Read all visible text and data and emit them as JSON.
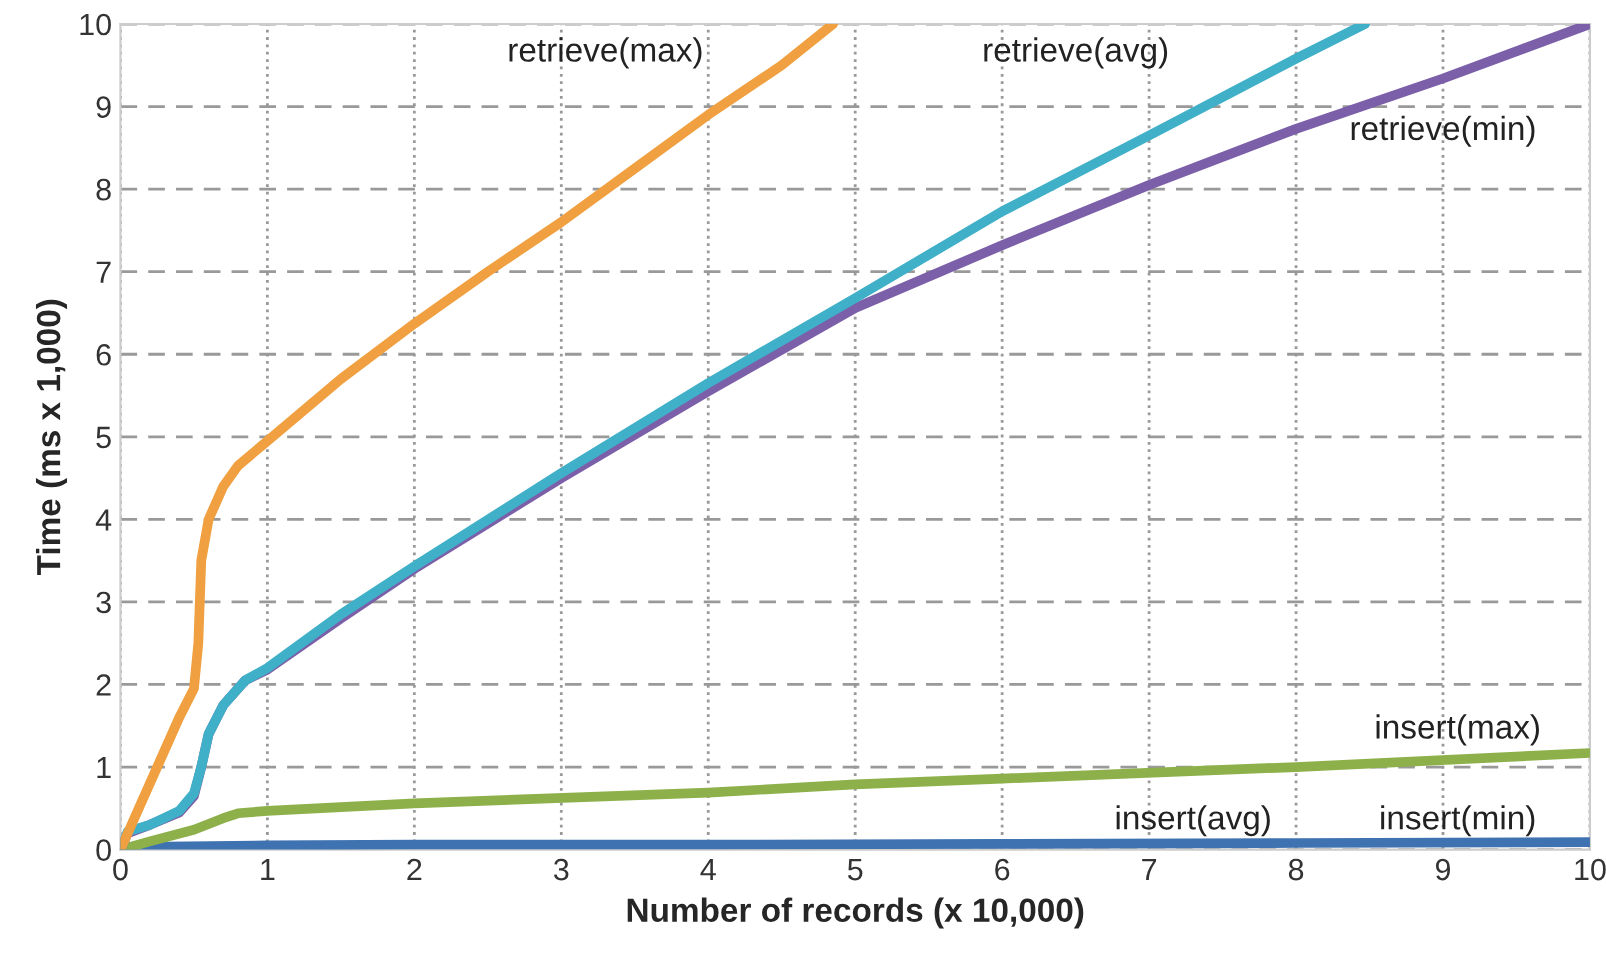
{
  "chart_data": {
    "type": "line",
    "xlabel": "Number of records (x 10,000)",
    "ylabel": "Time (ms x 1,000)",
    "xlim": [
      0,
      10
    ],
    "ylim": [
      0,
      10
    ],
    "xticks": [
      0,
      1,
      2,
      3,
      4,
      5,
      6,
      7,
      8,
      9,
      10
    ],
    "yticks": [
      0,
      1,
      2,
      3,
      4,
      5,
      6,
      7,
      8,
      9,
      10
    ],
    "grid": true,
    "legend": false,
    "series": [
      {
        "color": "#3f72b0",
        "x": [
          0,
          1,
          2,
          4,
          6,
          8,
          10
        ],
        "values": [
          0.03,
          0.05,
          0.06,
          0.06,
          0.07,
          0.08,
          0.09
        ]
      },
      {
        "color": "#8db04a",
        "x": [
          0,
          0.2,
          0.5,
          0.7,
          0.8,
          1,
          2,
          4,
          5,
          6,
          8,
          10
        ],
        "values": [
          0,
          0.1,
          0.24,
          0.38,
          0.44,
          0.47,
          0.56,
          0.69,
          0.79,
          0.86,
          1.0,
          1.17
        ]
      },
      {
        "color": "#7b5fa8",
        "x": [
          0,
          0.05,
          0.2,
          0.4,
          0.5,
          0.55,
          0.6,
          0.7,
          0.85,
          1,
          1.5,
          2,
          3,
          4,
          5,
          6,
          7,
          8,
          9,
          10
        ],
        "values": [
          0,
          0.2,
          0.3,
          0.45,
          0.65,
          1.0,
          1.4,
          1.75,
          2.05,
          2.18,
          2.8,
          3.4,
          4.5,
          5.55,
          6.56,
          7.32,
          8.05,
          8.73,
          9.34,
          10
        ]
      },
      {
        "color": "#3fb0c8",
        "x": [
          0,
          0.05,
          0.2,
          0.4,
          0.5,
          0.55,
          0.6,
          0.7,
          0.85,
          1,
          1.5,
          2,
          3,
          4,
          5,
          6,
          7,
          8,
          8.47
        ],
        "values": [
          0,
          0.22,
          0.3,
          0.47,
          0.68,
          1.0,
          1.4,
          1.75,
          2.05,
          2.2,
          2.85,
          3.43,
          4.56,
          5.65,
          6.68,
          7.73,
          8.65,
          9.58,
          10
        ]
      },
      {
        "color": "#f0a040",
        "x": [
          0,
          0.1,
          0.2,
          0.3,
          0.4,
          0.5,
          0.53,
          0.55,
          0.6,
          0.7,
          0.8,
          1,
          1.5,
          2,
          2.5,
          3,
          3.5,
          4,
          4.5,
          4.85
        ],
        "values": [
          0,
          0.4,
          0.8,
          1.2,
          1.6,
          1.95,
          2.5,
          3.5,
          4.0,
          4.4,
          4.65,
          4.95,
          5.7,
          6.37,
          7.0,
          7.6,
          8.25,
          8.9,
          9.5,
          10
        ]
      }
    ],
    "annotations": [
      "retrieve(max)",
      "retrieve(avg)",
      "retrieve(min)",
      "insert(max)",
      "insert(avg)",
      "insert(min)"
    ]
  }
}
